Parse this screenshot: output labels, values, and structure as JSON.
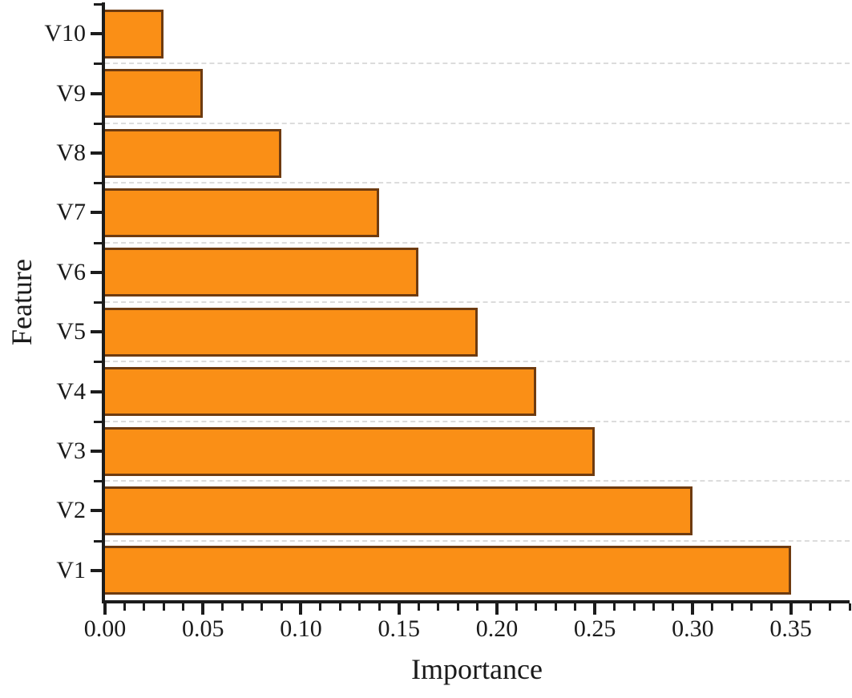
{
  "chart_data": {
    "type": "bar",
    "orientation": "horizontal",
    "title": "",
    "xlabel": "Importance",
    "ylabel": "Feature",
    "categories_top_to_bottom": [
      "V10",
      "V9",
      "V8",
      "V7",
      "V6",
      "V5",
      "V4",
      "V3",
      "V2",
      "V1"
    ],
    "values_top_to_bottom": [
      0.03,
      0.05,
      0.09,
      0.14,
      0.16,
      0.19,
      0.22,
      0.25,
      0.3,
      0.35
    ],
    "xlim": [
      0,
      0.38
    ],
    "x_major_ticks": [
      0,
      0.05,
      0.1,
      0.15,
      0.2,
      0.25,
      0.3,
      0.35
    ],
    "x_tick_labels": [
      "0.00",
      "0.05",
      "0.10",
      "0.15",
      "0.20",
      "0.25",
      "0.30",
      "0.35"
    ],
    "x_minor_tick_step": 0.01,
    "grid": "horizontal dashed lines at category boundaries",
    "legend": "none",
    "colors": {
      "bar_fill": "#FA8F16",
      "bar_edge": "#6E3B10",
      "axis": "#1c1c1c",
      "gridline": "#dcdcdc",
      "text": "#1a1a1a"
    }
  }
}
